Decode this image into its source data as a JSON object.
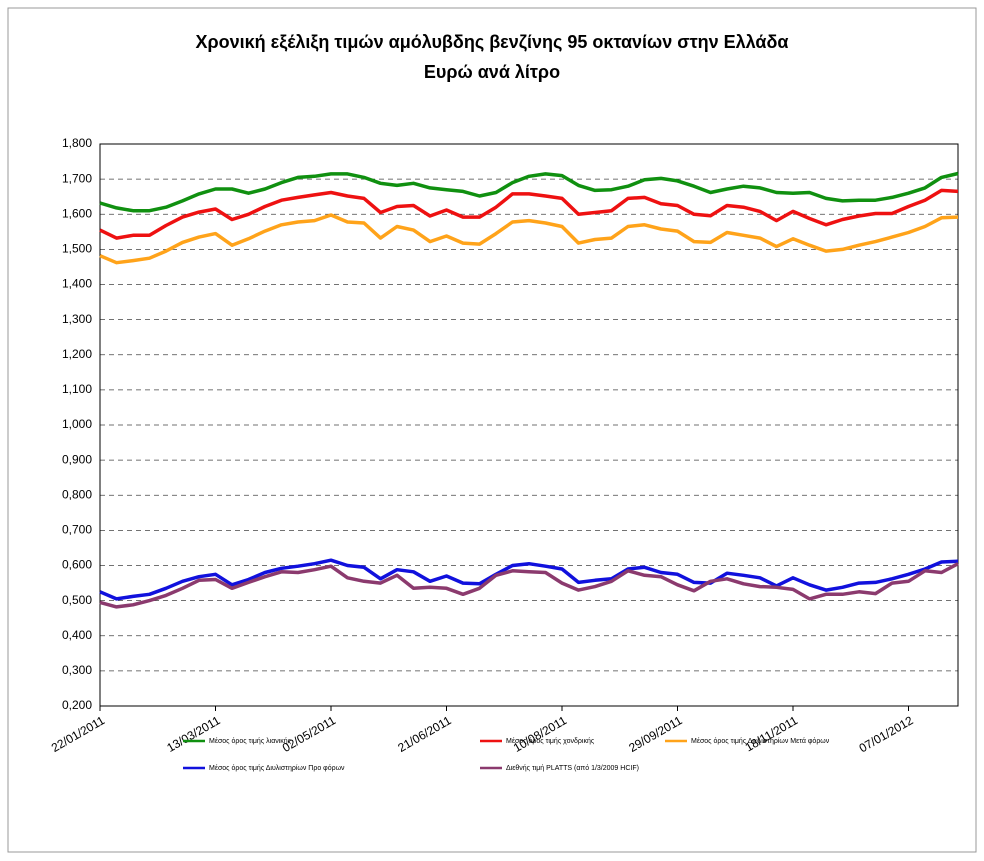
{
  "chart_data": {
    "type": "line",
    "title": "Χρονική εξέλιξη τιμών αμόλυβδης βενζίνης 95 οκτανίων στην Ελλάδα",
    "subtitle": "Ευρώ ανά λίτρο",
    "categories": [
      "22/01/2011",
      null,
      null,
      null,
      null,
      null,
      null,
      "13/03/2011",
      null,
      null,
      null,
      null,
      null,
      null,
      "02/05/2011",
      null,
      null,
      null,
      null,
      null,
      null,
      "21/06/2011",
      null,
      null,
      null,
      null,
      null,
      null,
      "10/08/2011",
      null,
      null,
      null,
      null,
      null,
      null,
      "29/09/2011",
      null,
      null,
      null,
      null,
      null,
      null,
      "18/11/2011",
      null,
      null,
      null,
      null,
      null,
      null,
      "07/01/2012",
      null,
      null,
      null
    ],
    "series": [
      {
        "name": "Μέσος όρος τιμής λιανικής",
        "color": "#109010",
        "values": [
          1.632,
          1.618,
          1.61,
          1.61,
          1.62,
          1.638,
          1.658,
          1.672,
          1.672,
          1.66,
          1.672,
          1.69,
          1.705,
          1.708,
          1.715,
          1.715,
          1.705,
          1.688,
          1.682,
          1.688,
          1.675,
          1.67,
          1.665,
          1.652,
          1.662,
          1.69,
          1.708,
          1.715,
          1.71,
          1.682,
          1.668,
          1.67,
          1.68,
          1.698,
          1.702,
          1.695,
          1.68,
          1.662,
          1.672,
          1.68,
          1.675,
          1.662,
          1.66,
          1.662,
          1.645,
          1.638,
          1.64,
          1.64,
          1.648,
          1.66,
          1.675,
          1.705,
          1.716
        ]
      },
      {
        "name": "Μέσος όρος τιμής χονδρικής",
        "color": "#ee1111",
        "values": [
          1.555,
          1.532,
          1.54,
          1.54,
          1.568,
          1.592,
          1.606,
          1.615,
          1.585,
          1.6,
          1.622,
          1.64,
          1.648,
          1.655,
          1.662,
          1.652,
          1.645,
          1.605,
          1.622,
          1.625,
          1.595,
          1.612,
          1.592,
          1.592,
          1.62,
          1.658,
          1.658,
          1.652,
          1.645,
          1.6,
          1.605,
          1.61,
          1.645,
          1.648,
          1.63,
          1.625,
          1.6,
          1.596,
          1.625,
          1.62,
          1.608,
          1.582,
          1.608,
          1.588,
          1.57,
          1.585,
          1.595,
          1.602,
          1.602,
          1.622,
          1.64,
          1.668,
          1.665
        ]
      },
      {
        "name": "Μέσος όρος τιμής Διυλιστηρίων Μετά φόρων",
        "color": "#ffa31a",
        "values": [
          1.482,
          1.462,
          1.468,
          1.475,
          1.495,
          1.52,
          1.535,
          1.545,
          1.512,
          1.53,
          1.552,
          1.57,
          1.578,
          1.582,
          1.598,
          1.578,
          1.575,
          1.532,
          1.565,
          1.555,
          1.522,
          1.538,
          1.518,
          1.515,
          1.545,
          1.578,
          1.582,
          1.575,
          1.565,
          1.518,
          1.528,
          1.532,
          1.565,
          1.57,
          1.558,
          1.552,
          1.522,
          1.52,
          1.548,
          1.54,
          1.532,
          1.508,
          1.53,
          1.512,
          1.495,
          1.5,
          1.512,
          1.522,
          1.535,
          1.548,
          1.565,
          1.59,
          1.592
        ]
      },
      {
        "name": "Μέσος όρος τιμής Διυλιστηρίων Προ φόρων",
        "color": "#1111dd",
        "values": [
          0.525,
          0.505,
          0.512,
          0.518,
          0.535,
          0.555,
          0.568,
          0.575,
          0.545,
          0.56,
          0.58,
          0.592,
          0.598,
          0.605,
          0.615,
          0.6,
          0.595,
          0.562,
          0.588,
          0.582,
          0.555,
          0.57,
          0.55,
          0.548,
          0.575,
          0.6,
          0.605,
          0.598,
          0.59,
          0.552,
          0.558,
          0.562,
          0.59,
          0.595,
          0.58,
          0.575,
          0.552,
          0.55,
          0.578,
          0.572,
          0.565,
          0.542,
          0.565,
          0.545,
          0.53,
          0.538,
          0.55,
          0.552,
          0.562,
          0.575,
          0.59,
          0.61,
          0.612
        ]
      },
      {
        "name": "Διεθνής τιμή PLATTS (από 1/3/2009 HCIF)",
        "color": "#8b3a6e",
        "values": [
          0.495,
          0.482,
          0.488,
          0.5,
          0.515,
          0.535,
          0.558,
          0.56,
          0.535,
          0.552,
          0.568,
          0.582,
          0.58,
          0.588,
          0.598,
          0.565,
          0.555,
          0.55,
          0.572,
          0.535,
          0.538,
          0.535,
          0.518,
          0.535,
          0.572,
          0.585,
          0.582,
          0.58,
          0.55,
          0.53,
          0.54,
          0.555,
          0.585,
          0.572,
          0.568,
          0.545,
          0.528,
          0.555,
          0.562,
          0.548,
          0.54,
          0.538,
          0.532,
          0.505,
          0.518,
          0.518,
          0.525,
          0.52,
          0.55,
          0.555,
          0.585,
          0.58,
          0.605
        ]
      }
    ],
    "ylim": [
      0.2,
      1.8
    ],
    "yticks": [
      {
        "value": 0.2,
        "label": "0,200"
      },
      {
        "value": 0.3,
        "label": "0,300"
      },
      {
        "value": 0.4,
        "label": "0,400"
      },
      {
        "value": 0.5,
        "label": "0,500"
      },
      {
        "value": 0.6,
        "label": "0,600"
      },
      {
        "value": 0.7,
        "label": "0,700"
      },
      {
        "value": 0.8,
        "label": "0,800"
      },
      {
        "value": 0.9,
        "label": "0,900"
      },
      {
        "value": 1.0,
        "label": "1,000"
      },
      {
        "value": 1.1,
        "label": "1,100"
      },
      {
        "value": 1.2,
        "label": "1,200"
      },
      {
        "value": 1.3,
        "label": "1,300"
      },
      {
        "value": 1.4,
        "label": "1,400"
      },
      {
        "value": 1.5,
        "label": "1,500"
      },
      {
        "value": 1.6,
        "label": "1,600"
      },
      {
        "value": 1.7,
        "label": "1,700"
      },
      {
        "value": 1.8,
        "label": "1,800"
      }
    ],
    "grid": true,
    "legend": "bottom"
  }
}
